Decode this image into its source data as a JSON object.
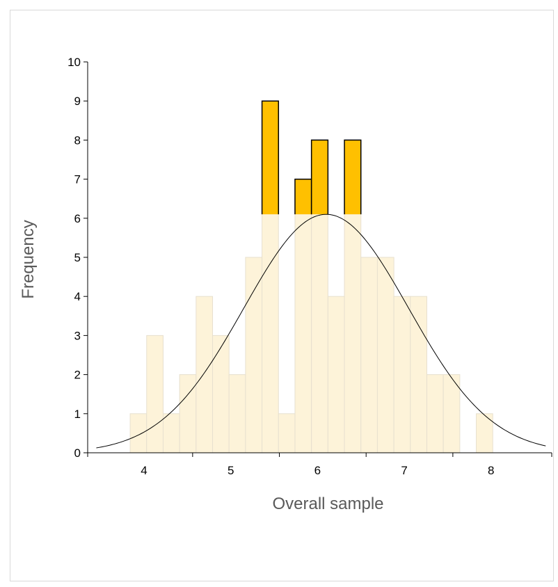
{
  "chart_data": {
    "type": "bar",
    "subtype": "histogram-with-normal-curve",
    "xlabel": "Overall sample",
    "ylabel": "Frequency",
    "xlim": [
      3.35,
      8.7
    ],
    "ylim": [
      0,
      10
    ],
    "x_ticks": [
      4,
      5,
      6,
      7,
      8
    ],
    "y_ticks": [
      0,
      1,
      2,
      3,
      4,
      5,
      6,
      7,
      8,
      9,
      10
    ],
    "bin_width": 0.19,
    "bins": [
      {
        "start": 3.84,
        "count": 1
      },
      {
        "start": 4.03,
        "count": 3
      },
      {
        "start": 4.22,
        "count": 1
      },
      {
        "start": 4.41,
        "count": 2
      },
      {
        "start": 4.6,
        "count": 4
      },
      {
        "start": 4.79,
        "count": 3
      },
      {
        "start": 4.98,
        "count": 2
      },
      {
        "start": 5.17,
        "count": 5
      },
      {
        "start": 5.36,
        "count": 9
      },
      {
        "start": 5.55,
        "count": 1
      },
      {
        "start": 5.74,
        "count": 7
      },
      {
        "start": 5.93,
        "count": 8
      },
      {
        "start": 6.12,
        "count": 4
      },
      {
        "start": 6.31,
        "count": 8
      },
      {
        "start": 6.5,
        "count": 5
      },
      {
        "start": 6.69,
        "count": 5
      },
      {
        "start": 6.88,
        "count": 4
      },
      {
        "start": 7.07,
        "count": 4
      },
      {
        "start": 7.26,
        "count": 2
      },
      {
        "start": 7.45,
        "count": 2
      },
      {
        "start": 7.64,
        "count": 0
      },
      {
        "start": 7.83,
        "count": 1
      }
    ],
    "normal_curve": {
      "mean": 6.1,
      "sd": 0.95,
      "peak": 6.1
    },
    "highlight_threshold": 6.1,
    "grid": false,
    "legend": "none",
    "colors": {
      "bar_fill": "#fdf3d9",
      "bar_stroke": "#e7e0cf",
      "highlight_fill": "#ffc000",
      "highlight_stroke": "#000000",
      "curve": "#000000",
      "axis": "#000000"
    }
  }
}
